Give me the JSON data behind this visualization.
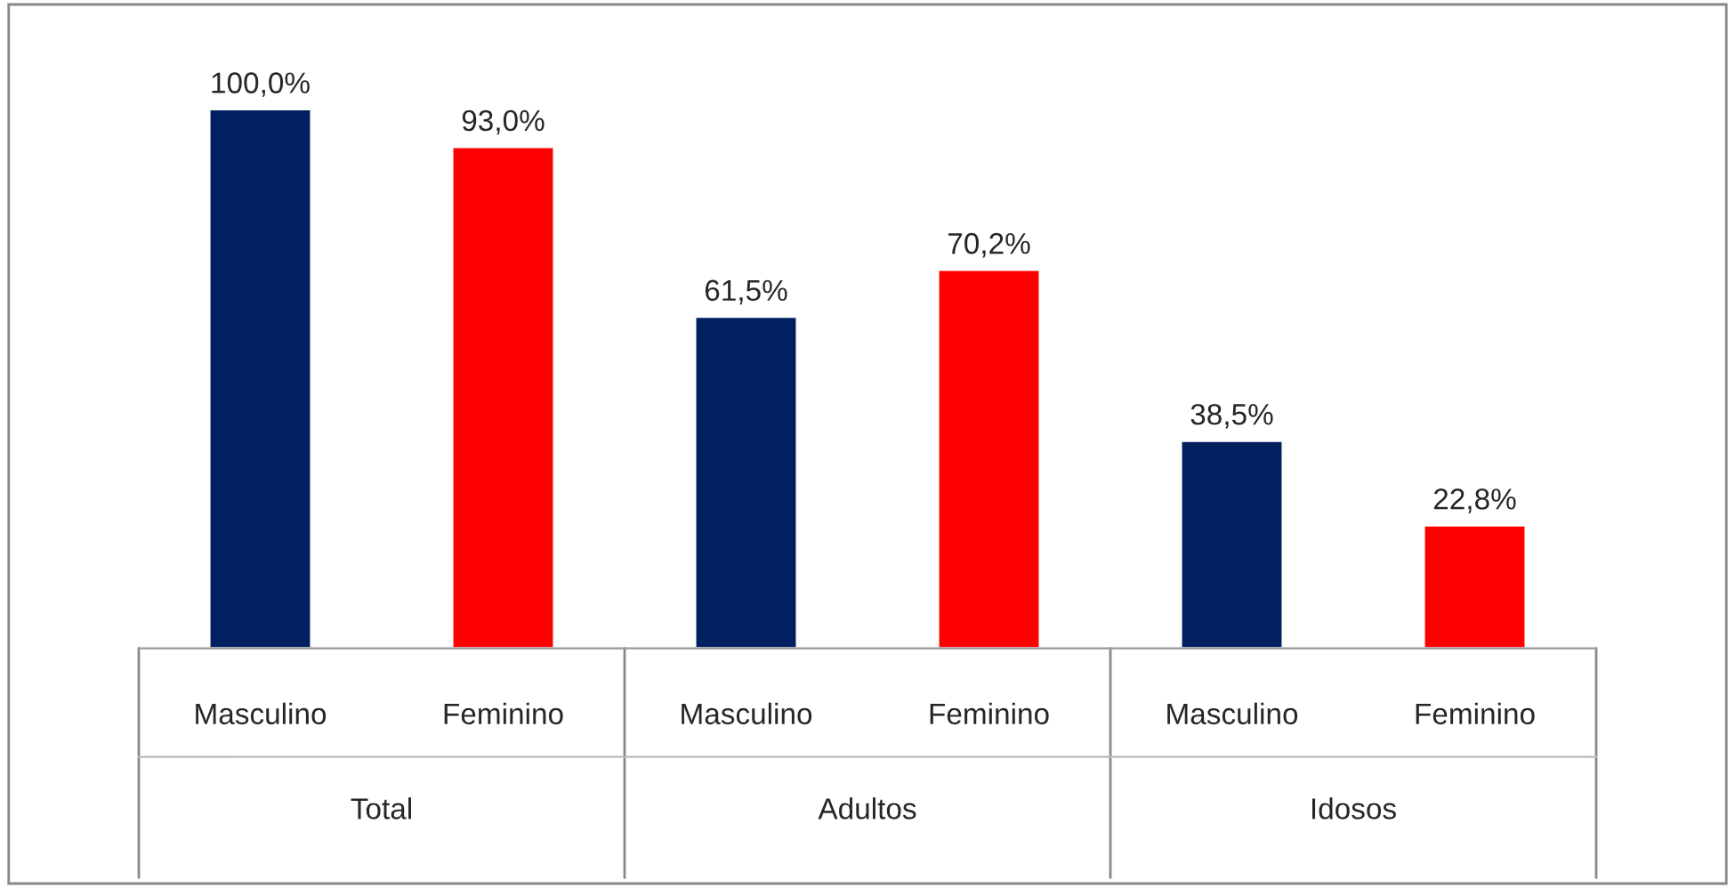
{
  "chart_data": {
    "type": "bar",
    "categories": [
      "Masculino",
      "Feminino",
      "Masculino",
      "Feminino",
      "Masculino",
      "Feminino"
    ],
    "values": [
      100.0,
      93.0,
      61.5,
      70.2,
      38.5,
      22.8
    ],
    "colors": [
      "#002060",
      "#ff0000",
      "#002060",
      "#ff0000",
      "#002060",
      "#ff0000"
    ],
    "value_labels": [
      "100,0%",
      "93,0%",
      "61,5%",
      "70,2%",
      "38,5%",
      "22,8%"
    ],
    "annotations": [
      "Total",
      "Adultos",
      "Idosos"
    ],
    "grid": false,
    "legend": false
  }
}
